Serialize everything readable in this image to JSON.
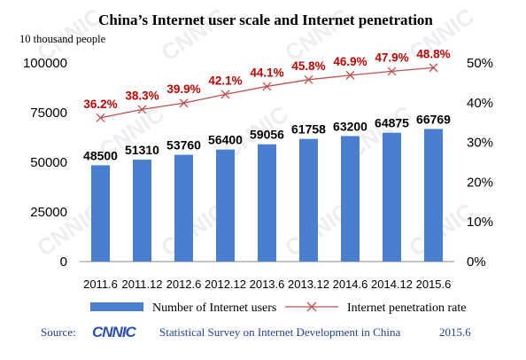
{
  "chart_data": {
    "type": "bar",
    "title": "China’s Internet user scale and Internet penetration",
    "unit_label": "10 thousand people",
    "categories": [
      "2011.6",
      "2011.12",
      "2012.6",
      "2012.12",
      "2013.6",
      "2013.12",
      "2014.6",
      "2014.12",
      "2015.6"
    ],
    "series": [
      {
        "name": "Number of Internet users",
        "type": "bar",
        "axis": "left",
        "color": "#4a7fd0",
        "values": [
          48500,
          51310,
          53760,
          56400,
          59056,
          61758,
          63200,
          64875,
          66769
        ]
      },
      {
        "name": "Internet penetration rate",
        "type": "line",
        "axis": "right",
        "color": "#c0504d",
        "values": [
          36.2,
          38.3,
          39.9,
          42.1,
          44.1,
          45.8,
          46.9,
          47.9,
          48.8
        ],
        "labels": [
          "36.2%",
          "38.3%",
          "39.9%",
          "42.1%",
          "44.1%",
          "45.8%",
          "46.9%",
          "47.9%",
          "48.8%"
        ]
      }
    ],
    "y_left": {
      "ylim": [
        0,
        100000
      ],
      "ticks": [
        "0",
        "25000",
        "50000",
        "75000",
        "100000"
      ]
    },
    "y_right": {
      "ylim": [
        0,
        50
      ],
      "ticks": [
        "0%",
        "10%",
        "20%",
        "30%",
        "40%",
        "50%"
      ]
    },
    "grid": false,
    "legend_position": "bottom"
  },
  "footer": {
    "source_label": "Source:",
    "logo_text": "CNNIC",
    "survey": "Statistical Survey on Internet Development in China",
    "date": "2015.6"
  },
  "watermark_text": "CNNIC"
}
